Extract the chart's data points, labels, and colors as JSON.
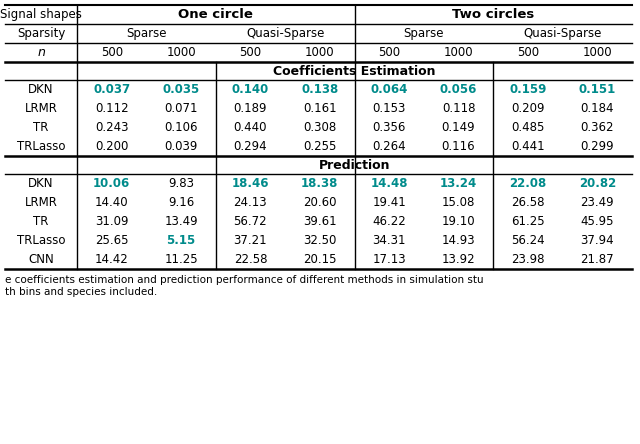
{
  "teal": "#008B8B",
  "black": "#000000",
  "header1": "Signal shapes",
  "header2": "One circle",
  "header3": "Two circles",
  "row_sparsity": "Sparsity",
  "row_n": "n",
  "sparse_label": "Sparse",
  "quasi_sparse_label": "Quasi-Sparse",
  "n_values": [
    "500",
    "1000",
    "500",
    "1000",
    "500",
    "1000",
    "500",
    "1000"
  ],
  "section_coeff": "Coefficients Estimation",
  "section_pred": "Prediction",
  "methods_coeff": [
    "DKN",
    "LRMR",
    "TR",
    "TRLasso"
  ],
  "methods_pred": [
    "DKN",
    "LRMR",
    "TR",
    "TRLasso",
    "CNN"
  ],
  "coeff_data": [
    [
      "0.037",
      "0.035",
      "0.140",
      "0.138",
      "0.064",
      "0.056",
      "0.159",
      "0.151"
    ],
    [
      "0.112",
      "0.071",
      "0.189",
      "0.161",
      "0.153",
      "0.118",
      "0.209",
      "0.184"
    ],
    [
      "0.243",
      "0.106",
      "0.440",
      "0.308",
      "0.356",
      "0.149",
      "0.485",
      "0.362"
    ],
    [
      "0.200",
      "0.039",
      "0.294",
      "0.255",
      "0.264",
      "0.116",
      "0.441",
      "0.299"
    ]
  ],
  "coeff_teal": [
    [
      true,
      true,
      true,
      true,
      true,
      true,
      true,
      true
    ],
    [
      false,
      false,
      false,
      false,
      false,
      false,
      false,
      false
    ],
    [
      false,
      false,
      false,
      false,
      false,
      false,
      false,
      false
    ],
    [
      false,
      false,
      false,
      false,
      false,
      false,
      false,
      false
    ]
  ],
  "pred_data": [
    [
      "10.06",
      "9.83",
      "18.46",
      "18.38",
      "14.48",
      "13.24",
      "22.08",
      "20.82"
    ],
    [
      "14.40",
      "9.16",
      "24.13",
      "20.60",
      "19.41",
      "15.08",
      "26.58",
      "23.49"
    ],
    [
      "31.09",
      "13.49",
      "56.72",
      "39.61",
      "46.22",
      "19.10",
      "61.25",
      "45.95"
    ],
    [
      "25.65",
      "5.15",
      "37.21",
      "32.50",
      "34.31",
      "14.93",
      "56.24",
      "37.94"
    ],
    [
      "14.42",
      "11.25",
      "22.58",
      "20.15",
      "17.13",
      "13.92",
      "23.98",
      "21.87"
    ]
  ],
  "pred_teal": [
    [
      true,
      false,
      true,
      true,
      true,
      true,
      true,
      true
    ],
    [
      false,
      false,
      false,
      false,
      false,
      false,
      false,
      false
    ],
    [
      false,
      false,
      false,
      false,
      false,
      false,
      false,
      false
    ],
    [
      false,
      true,
      false,
      false,
      false,
      false,
      false,
      false
    ],
    [
      false,
      false,
      false,
      false,
      false,
      false,
      false,
      false
    ]
  ],
  "caption1": "e coefficients estimation and prediction performance of different methods in simulation stu",
  "caption2": "th bins and species included.",
  "fig_w": 6.4,
  "fig_h": 4.44,
  "dpi": 100
}
